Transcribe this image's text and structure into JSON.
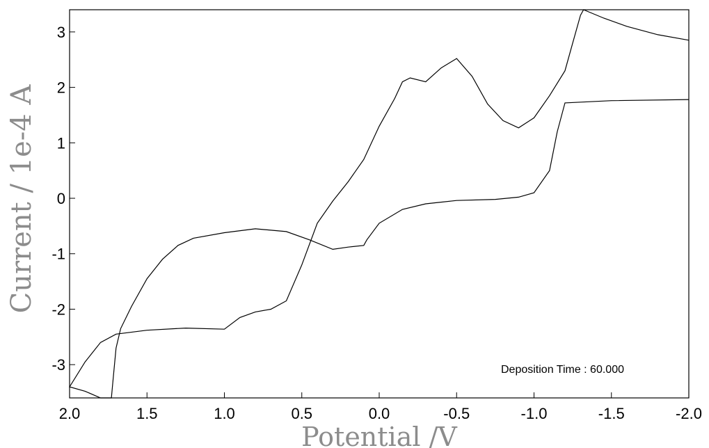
{
  "chart_data": {
    "type": "line",
    "xlabel": "Potential /V",
    "ylabel": "Current / 1e-4 A",
    "xlim": [
      2.0,
      -2.0
    ],
    "ylim": [
      -3.6,
      3.4
    ],
    "x_reversed": true,
    "x_ticks": [
      2.0,
      1.5,
      1.0,
      0.5,
      0.0,
      -0.5,
      -1.0,
      -1.5,
      -2.0
    ],
    "x_tick_labels": [
      "2.0",
      "1.5",
      "1.0",
      "0.5",
      "0.0",
      "-0.5",
      "-1.0",
      "-1.5",
      "-2.0"
    ],
    "y_ticks": [
      3,
      2,
      1,
      0,
      -1,
      -2,
      -3
    ],
    "y_tick_labels": [
      "3",
      "2",
      "1",
      "0",
      "-1",
      "-2",
      "-3"
    ],
    "grid": false,
    "annotation": "Deposition Time : 60.000",
    "series": [
      {
        "points": [
          [
            -2.0,
            1.78
          ],
          [
            -1.5,
            1.76
          ],
          [
            -1.2,
            1.72
          ],
          [
            -1.15,
            1.2
          ],
          [
            -1.1,
            0.5
          ],
          [
            -1.0,
            0.1
          ],
          [
            -0.9,
            0.02
          ],
          [
            -0.75,
            -0.02
          ],
          [
            -0.5,
            -0.04
          ],
          [
            -0.3,
            -0.1
          ],
          [
            -0.15,
            -0.2
          ],
          [
            0.0,
            -0.45
          ],
          [
            0.08,
            -0.75
          ],
          [
            0.1,
            -0.85
          ],
          [
            0.2,
            -0.88
          ],
          [
            0.3,
            -0.92
          ],
          [
            0.45,
            -0.75
          ],
          [
            0.6,
            -0.6
          ],
          [
            0.8,
            -0.55
          ],
          [
            1.0,
            -0.62
          ],
          [
            1.2,
            -0.72
          ],
          [
            1.3,
            -0.85
          ],
          [
            1.4,
            -1.1
          ],
          [
            1.5,
            -1.45
          ],
          [
            1.6,
            -1.95
          ],
          [
            1.67,
            -2.35
          ],
          [
            1.7,
            -2.7
          ],
          [
            1.72,
            -3.3
          ],
          [
            1.73,
            -3.6
          ],
          [
            1.8,
            -3.6
          ],
          [
            1.9,
            -3.48
          ],
          [
            2.0,
            -3.4
          ],
          [
            1.9,
            -2.95
          ],
          [
            1.8,
            -2.6
          ],
          [
            1.7,
            -2.45
          ],
          [
            1.5,
            -2.38
          ],
          [
            1.25,
            -2.34
          ],
          [
            1.0,
            -2.36
          ],
          [
            0.9,
            -2.15
          ],
          [
            0.8,
            -2.05
          ],
          [
            0.7,
            -2.0
          ],
          [
            0.6,
            -1.85
          ],
          [
            0.5,
            -1.2
          ],
          [
            0.4,
            -0.45
          ],
          [
            0.3,
            -0.05
          ],
          [
            0.2,
            0.3
          ],
          [
            0.1,
            0.7
          ],
          [
            0.0,
            1.3
          ],
          [
            -0.1,
            1.8
          ],
          [
            -0.15,
            2.1
          ],
          [
            -0.2,
            2.17
          ],
          [
            -0.3,
            2.1
          ],
          [
            -0.4,
            2.35
          ],
          [
            -0.5,
            2.52
          ],
          [
            -0.6,
            2.2
          ],
          [
            -0.7,
            1.7
          ],
          [
            -0.8,
            1.4
          ],
          [
            -0.9,
            1.27
          ],
          [
            -1.0,
            1.45
          ],
          [
            -1.1,
            1.85
          ],
          [
            -1.2,
            2.3
          ],
          [
            -1.25,
            2.8
          ],
          [
            -1.3,
            3.3
          ],
          [
            -1.32,
            3.4
          ],
          [
            -1.45,
            3.25
          ],
          [
            -1.6,
            3.1
          ],
          [
            -1.8,
            2.95
          ],
          [
            -2.0,
            2.85
          ]
        ]
      }
    ]
  }
}
